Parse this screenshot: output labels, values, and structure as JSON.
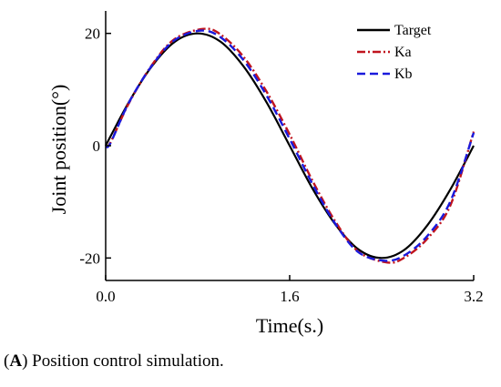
{
  "chart_data": {
    "type": "line",
    "title": "",
    "xlabel": "Time(s.)",
    "ylabel": "Joint position(°)",
    "xlim": [
      0,
      3.2
    ],
    "ylim": [
      -24,
      24
    ],
    "x_ticks": [
      0.0,
      1.6,
      3.2
    ],
    "x_tick_labels": [
      "0.0",
      "1.6",
      "3.2"
    ],
    "y_ticks": [
      -20,
      0,
      20
    ],
    "y_tick_labels": [
      "-20",
      "0",
      "20"
    ],
    "grid": false,
    "legend_position": "top-right",
    "series": [
      {
        "name": "Target",
        "color": "#000000",
        "style": "solid",
        "x": [
          0.0,
          0.2,
          0.4,
          0.6,
          0.8,
          1.0,
          1.2,
          1.4,
          1.6,
          1.8,
          2.0,
          2.2,
          2.4,
          2.6,
          2.8,
          3.0,
          3.2
        ],
        "y": [
          0.0,
          7.7,
          14.1,
          18.5,
          20.0,
          18.5,
          14.1,
          7.7,
          0.0,
          -7.7,
          -14.1,
          -18.5,
          -20.0,
          -18.5,
          -14.1,
          -7.7,
          0.0
        ]
      },
      {
        "name": "Ka",
        "color": "#c0141e",
        "style": "dash-dot",
        "x": [
          0.0,
          0.04,
          0.2,
          0.4,
          0.6,
          0.85,
          1.0,
          1.2,
          1.4,
          1.6,
          1.8,
          2.0,
          2.2,
          2.45,
          2.6,
          2.8,
          3.0,
          3.2
        ],
        "y": [
          0.0,
          0.5,
          7.5,
          14.3,
          19.0,
          20.8,
          19.8,
          15.8,
          9.6,
          2.0,
          -6.3,
          -13.6,
          -18.9,
          -20.8,
          -19.9,
          -16.5,
          -10.5,
          2.5
        ]
      },
      {
        "name": "Kb",
        "color": "#1a1adc",
        "style": "dashed",
        "x": [
          0.0,
          0.04,
          0.2,
          0.4,
          0.6,
          0.83,
          1.0,
          1.2,
          1.4,
          1.6,
          1.8,
          2.0,
          2.2,
          2.43,
          2.6,
          2.8,
          3.0,
          3.2
        ],
        "y": [
          0.0,
          0.4,
          7.6,
          14.2,
          18.8,
          20.5,
          19.3,
          15.2,
          8.9,
          1.2,
          -6.9,
          -14.0,
          -19.0,
          -20.5,
          -19.5,
          -16.0,
          -9.8,
          2.3
        ]
      }
    ]
  },
  "caption": {
    "label": "A",
    "text": " Position control simulation."
  }
}
